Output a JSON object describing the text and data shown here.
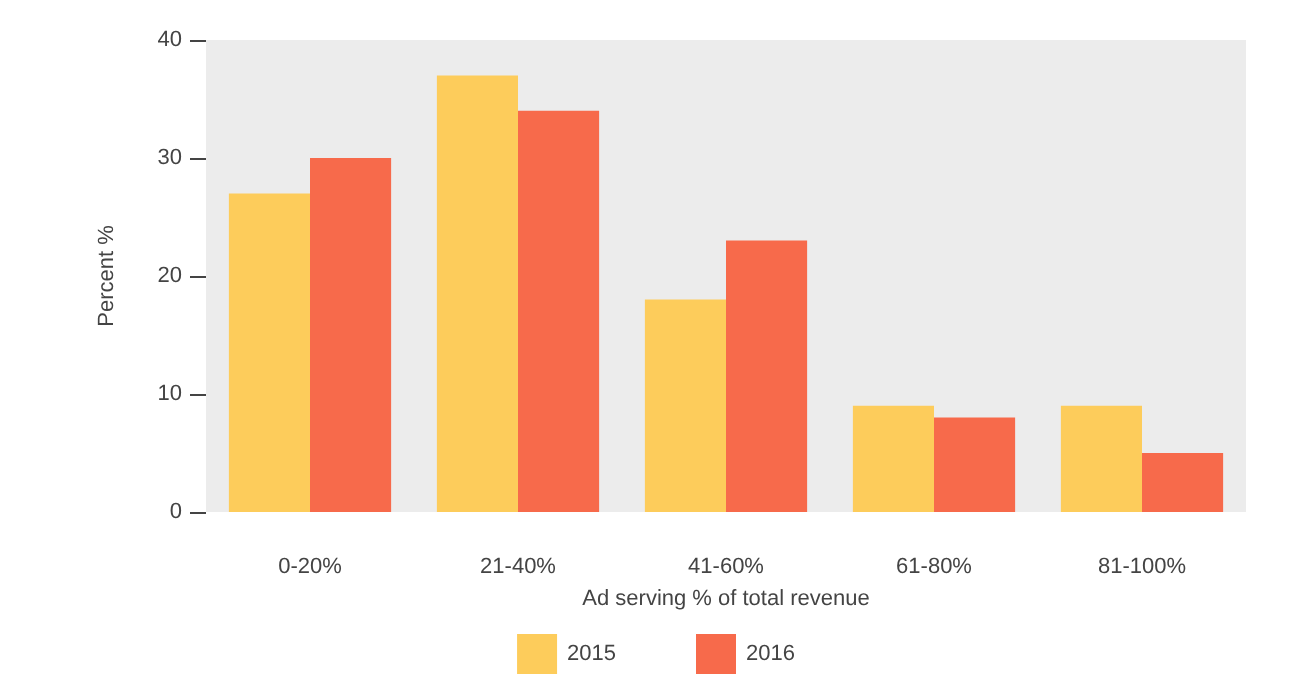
{
  "chart_data": {
    "type": "bar",
    "xlabel": "Ad serving % of total revenue",
    "ylabel": "Percent %",
    "categories": [
      "0-20%",
      "21-40%",
      "41-60%",
      "61-80%",
      "81-100%"
    ],
    "series": [
      {
        "name": "2015",
        "color": "#fdcc5b",
        "values": [
          27,
          37,
          18,
          9,
          9
        ]
      },
      {
        "name": "2016",
        "color": "#f76a4b",
        "values": [
          30,
          34,
          23,
          8,
          5
        ]
      }
    ],
    "ylim": [
      0,
      40
    ],
    "yticks": [
      0,
      10,
      20,
      30,
      40
    ],
    "grid": false,
    "legend": "bottom"
  }
}
